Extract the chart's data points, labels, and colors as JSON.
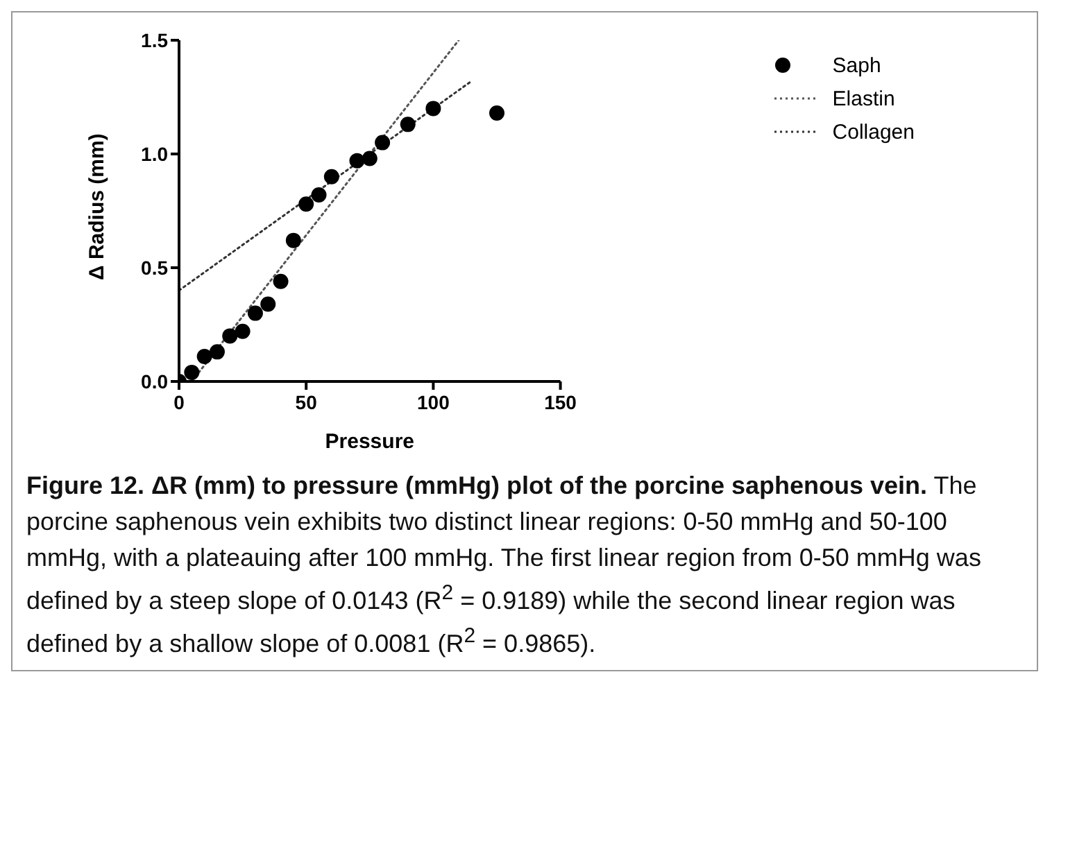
{
  "chart_data": {
    "type": "scatter",
    "title": "Figure 12. ΔR (mm) to pressure (mmHg) plot of the porcine saphenous vein.",
    "annotations": [
      "The porcine saphenous vein exhibits two distinct linear regions: 0-50 mmHg and 50-100 mmHg, with a plateauing after 100 mmHg. The first linear region from 0-50 mmHg was defined by a steep slope of 0.0143 (R$^{2}$ = 0.9189) while the second linear region was defined by a shallow slope of 0.0081 (R$^{2}$ = 0.9865)."
    ],
    "xlabel": "Pressure",
    "ylabel": "Δ Radius (mm)",
    "x": [
      0,
      5,
      10,
      15,
      20,
      25,
      30,
      35,
      40,
      45,
      50,
      55,
      60,
      70,
      75,
      80,
      90,
      100,
      125
    ],
    "series": [
      {
        "name": "Saph",
        "color": "#000000",
        "marker": "circle",
        "values": [
          0,
          0.04,
          0.11,
          0.13,
          0.2,
          0.22,
          0.3,
          0.34,
          0.44,
          0.62,
          0.78,
          0.82,
          0.9,
          0.97,
          0.98,
          1.05,
          1.13,
          1.2,
          1.18
        ]
      },
      {
        "name": "Elastin",
        "type": "line",
        "color": "#555555",
        "marker": "none",
        "line_style": "dotted",
        "x": [
          5,
          110
        ],
        "values": [
          0,
          1.5
        ]
      },
      {
        "name": "Collagen",
        "type": "line",
        "color": "#333333",
        "marker": "none",
        "line_style": "dotted",
        "x": [
          0,
          115
        ],
        "values": [
          0.4,
          1.32
        ]
      }
    ],
    "xlim": [
      0,
      150
    ],
    "xticks": [
      0,
      50,
      100,
      150
    ],
    "ylim": [
      0,
      1.5
    ],
    "yticks": [
      {
        "value": 0,
        "label": "0.0"
      },
      {
        "value": 0.5,
        "label": "0.5"
      },
      {
        "value": 1,
        "label": "1.0"
      },
      {
        "value": 1.5,
        "label": "1.5"
      }
    ],
    "grid": false,
    "legend": "top right"
  }
}
